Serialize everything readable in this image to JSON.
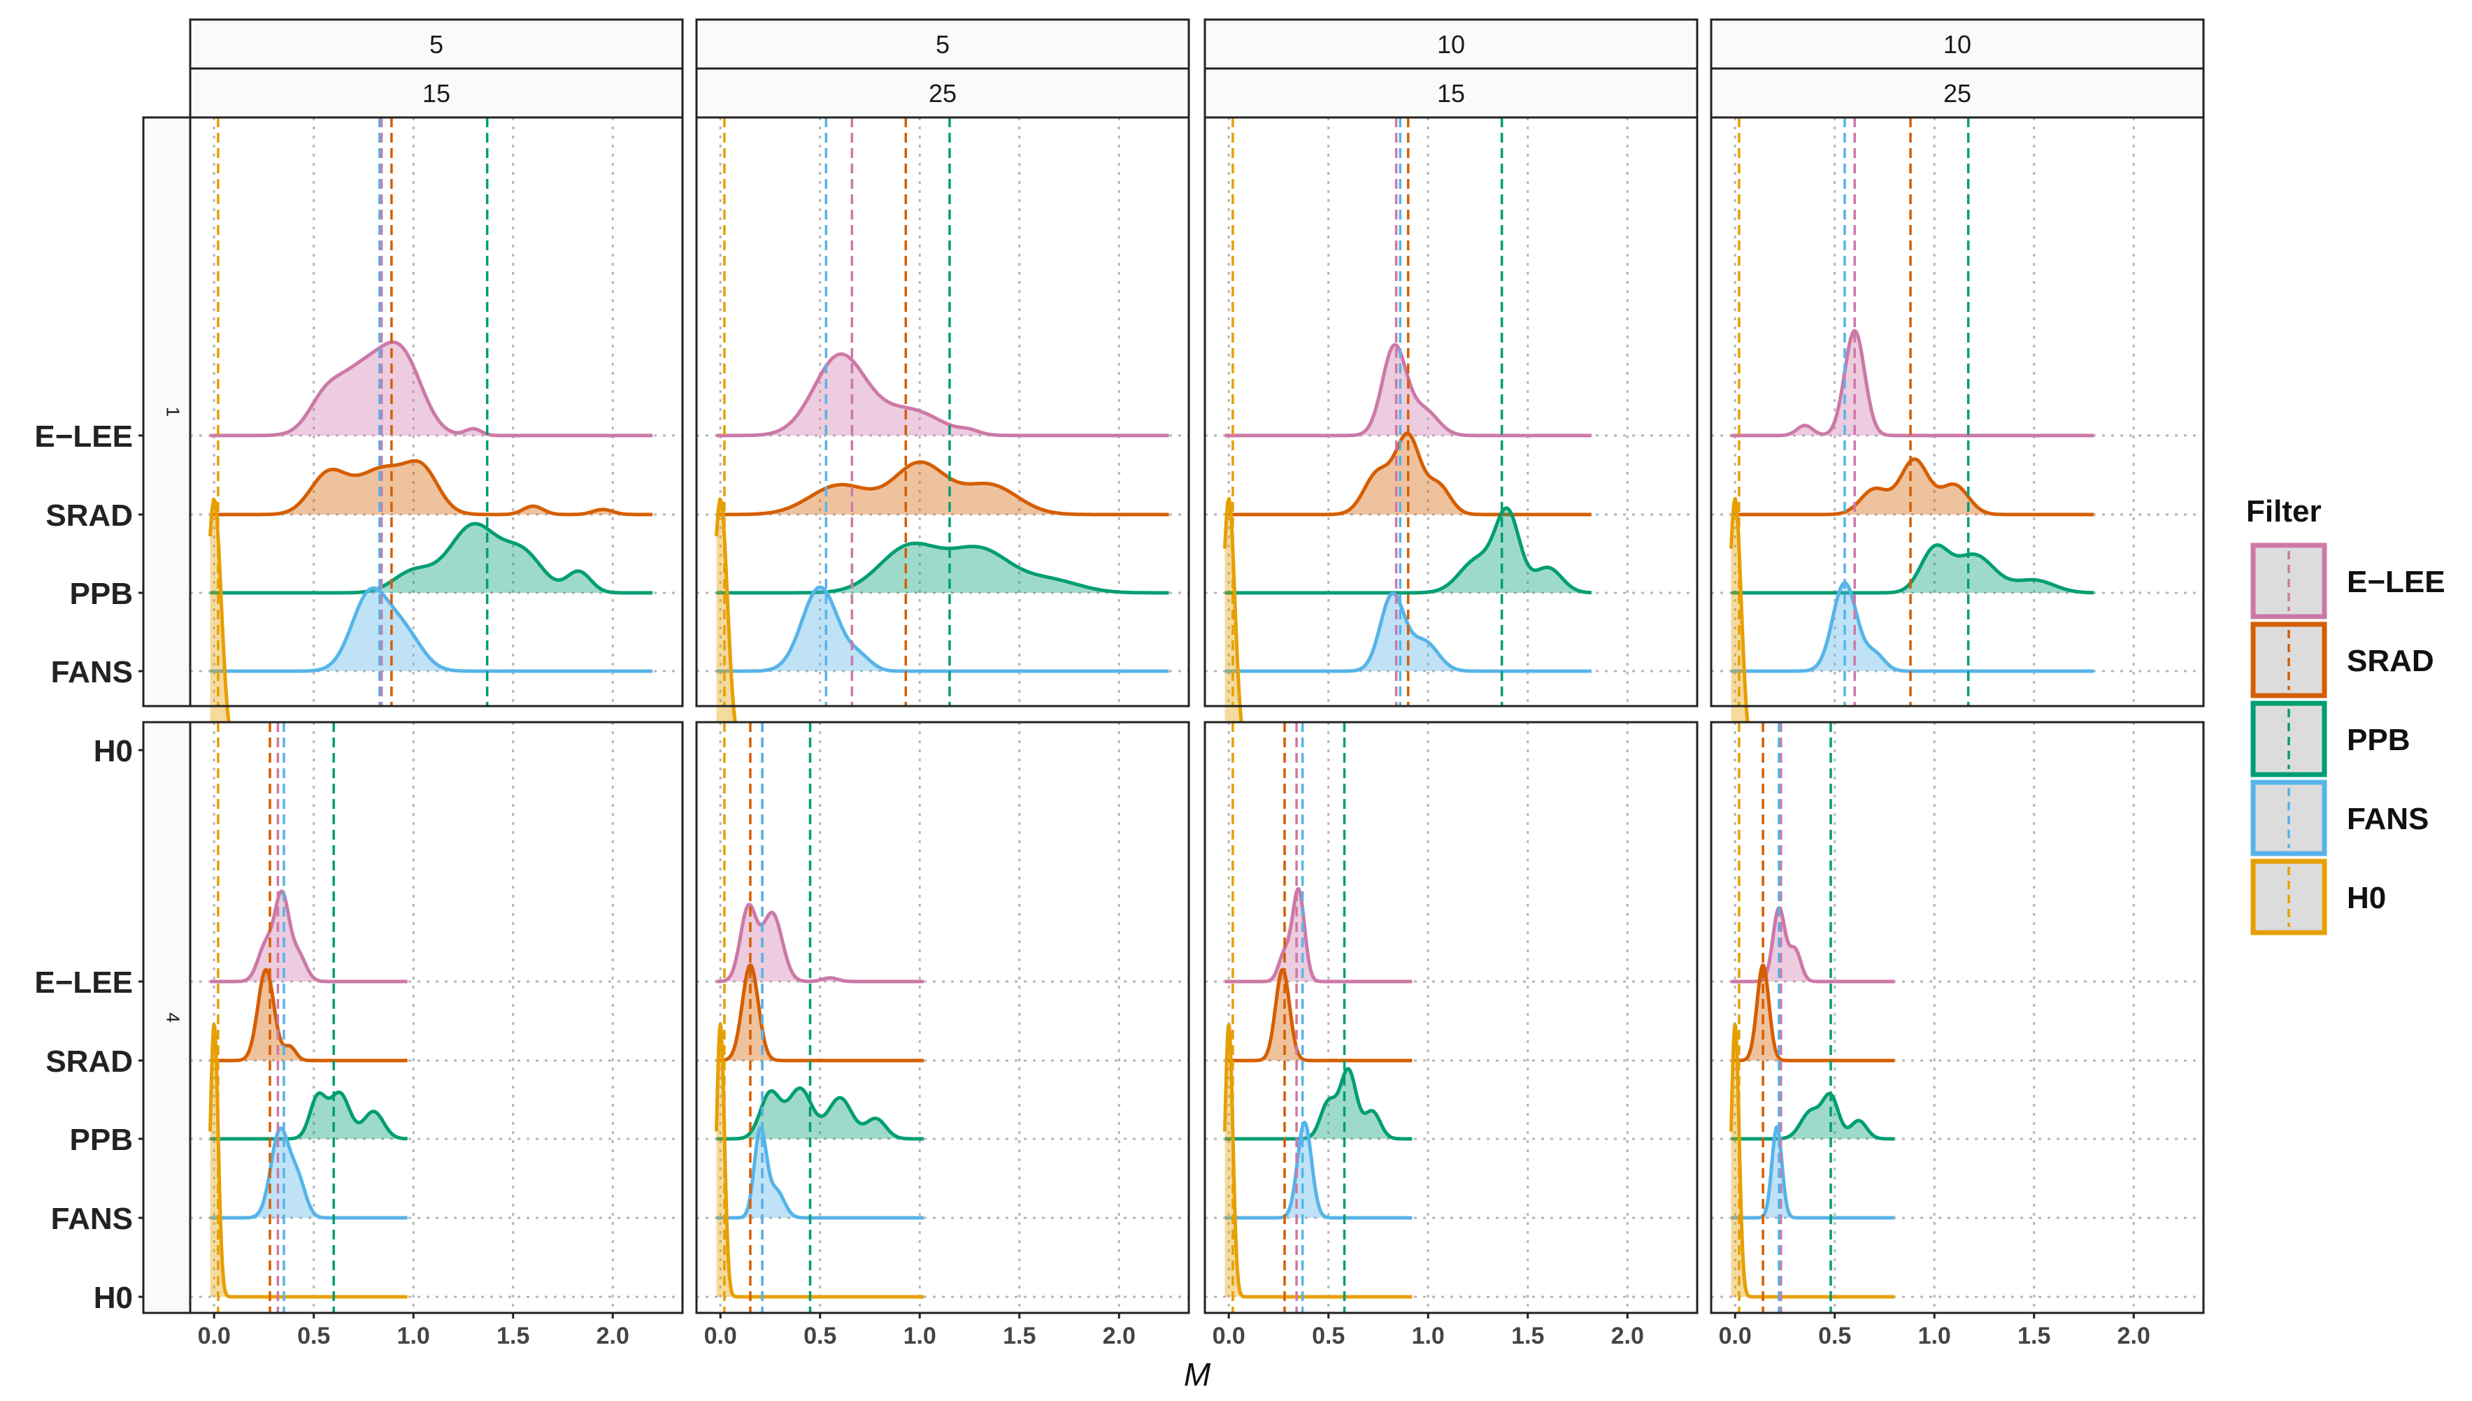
{
  "chart_data": {
    "type": "ridgeline-density",
    "xlabel": "M",
    "ylabel": "",
    "x_ticks": [
      0.0,
      0.5,
      1.0,
      1.5,
      2.0
    ],
    "x_tick_labels": [
      "0.0",
      "0.5",
      "1.0",
      "1.5",
      "2.0"
    ],
    "xlim": [
      -0.12,
      2.35
    ],
    "grid": "dotted",
    "legend": {
      "title": "Filter",
      "position": "right",
      "entries": [
        "E−LEE",
        "SRAD",
        "PPB",
        "FANS",
        "H0"
      ]
    },
    "categories": [
      "E−LEE",
      "SRAD",
      "PPB",
      "FANS",
      "H0"
    ],
    "colors": {
      "E−LEE": "#CC79A7",
      "SRAD": "#D55E00",
      "PPB": "#009E73",
      "FANS": "#56B4E9",
      "H0": "#E69F00"
    },
    "col_strips": [
      {
        "top": "5",
        "bottom": "15"
      },
      {
        "top": "5",
        "bottom": "25"
      },
      {
        "top": "10",
        "bottom": "15"
      },
      {
        "top": "10",
        "bottom": "25"
      }
    ],
    "row_strips": [
      "1",
      "4"
    ],
    "panels": [
      {
        "row": 0,
        "col": 0,
        "x_end": 2.2,
        "peak_height": 1.0,
        "means": {
          "E−LEE": 0.84,
          "SRAD": 0.89,
          "PPB": 1.37,
          "FANS": 0.83,
          "H0": 0.02
        },
        "series": {
          "E−LEE": [
            [
              0.55,
              0.28,
              0.08
            ],
            [
              0.75,
              0.8,
              0.14
            ],
            [
              0.95,
              0.75,
              0.1
            ],
            [
              1.3,
              0.08,
              0.04
            ]
          ],
          "SRAD": [
            [
              0.57,
              0.45,
              0.09
            ],
            [
              0.85,
              0.55,
              0.14
            ],
            [
              1.05,
              0.4,
              0.08
            ],
            [
              1.6,
              0.1,
              0.05
            ],
            [
              1.95,
              0.06,
              0.05
            ]
          ],
          "PPB": [
            [
              1.0,
              0.25,
              0.1
            ],
            [
              1.3,
              0.8,
              0.12
            ],
            [
              1.55,
              0.45,
              0.1
            ],
            [
              1.83,
              0.25,
              0.06
            ]
          ],
          "FANS": [
            [
              0.78,
              0.9,
              0.09
            ],
            [
              0.95,
              0.45,
              0.09
            ]
          ],
          "H0": [
            [
              0.0,
              3.0,
              0.035
            ]
          ]
        }
      },
      {
        "row": 0,
        "col": 1,
        "x_end": 2.25,
        "peak_height": 1.0,
        "means": {
          "E−LEE": 0.66,
          "SRAD": 0.93,
          "PPB": 1.15,
          "FANS": 0.53,
          "H0": 0.02
        },
        "series": {
          "E−LEE": [
            [
              0.6,
              0.95,
              0.13
            ],
            [
              0.95,
              0.3,
              0.15
            ],
            [
              1.25,
              0.04,
              0.05
            ]
          ],
          "SRAD": [
            [
              0.6,
              0.35,
              0.15
            ],
            [
              1.0,
              0.6,
              0.13
            ],
            [
              1.35,
              0.35,
              0.14
            ]
          ],
          "PPB": [
            [
              0.95,
              0.55,
              0.15
            ],
            [
              1.3,
              0.5,
              0.15
            ],
            [
              1.65,
              0.15,
              0.15
            ]
          ],
          "FANS": [
            [
              0.5,
              1.0,
              0.09
            ],
            [
              0.7,
              0.15,
              0.06
            ]
          ],
          "H0": [
            [
              0.0,
              3.0,
              0.035
            ]
          ]
        }
      },
      {
        "row": 0,
        "col": 2,
        "x_end": 1.82,
        "peak_height": 1.0,
        "means": {
          "E−LEE": 0.84,
          "SRAD": 0.9,
          "PPB": 1.37,
          "FANS": 0.86,
          "H0": 0.02
        },
        "series": {
          "E−LEE": [
            [
              0.83,
              1.05,
              0.06
            ],
            [
              0.98,
              0.3,
              0.07
            ]
          ],
          "SRAD": [
            [
              0.75,
              0.5,
              0.07
            ],
            [
              0.9,
              0.9,
              0.06
            ],
            [
              1.05,
              0.35,
              0.06
            ]
          ],
          "PPB": [
            [
              1.25,
              0.4,
              0.09
            ],
            [
              1.4,
              0.9,
              0.06
            ],
            [
              1.6,
              0.3,
              0.07
            ]
          ],
          "FANS": [
            [
              0.82,
              0.9,
              0.06
            ],
            [
              0.98,
              0.35,
              0.07
            ]
          ],
          "H0": [
            [
              0.0,
              3.0,
              0.03
            ]
          ]
        }
      },
      {
        "row": 0,
        "col": 3,
        "x_end": 1.8,
        "peak_height": 1.0,
        "means": {
          "E−LEE": 0.6,
          "SRAD": 0.88,
          "PPB": 1.17,
          "FANS": 0.55,
          "H0": 0.02
        },
        "series": {
          "E−LEE": [
            [
              0.6,
              1.25,
              0.05
            ],
            [
              0.35,
              0.12,
              0.04
            ]
          ],
          "SRAD": [
            [
              0.7,
              0.3,
              0.07
            ],
            [
              0.9,
              0.65,
              0.07
            ],
            [
              1.1,
              0.35,
              0.07
            ]
          ],
          "PPB": [
            [
              1.0,
              0.5,
              0.07
            ],
            [
              1.2,
              0.45,
              0.1
            ],
            [
              1.5,
              0.15,
              0.1
            ]
          ],
          "FANS": [
            [
              0.55,
              1.05,
              0.06
            ],
            [
              0.7,
              0.2,
              0.05
            ]
          ],
          "H0": [
            [
              0.0,
              3.0,
              0.03
            ]
          ]
        }
      },
      {
        "row": 1,
        "col": 0,
        "x_end": 0.97,
        "peak_height": 1.0,
        "means": {
          "E−LEE": 0.32,
          "SRAD": 0.28,
          "PPB": 0.6,
          "FANS": 0.35,
          "H0": 0.02
        },
        "series": {
          "E−LEE": [
            [
              0.26,
              0.4,
              0.04
            ],
            [
              0.34,
              0.9,
              0.035
            ],
            [
              0.42,
              0.3,
              0.04
            ]
          ],
          "SRAD": [
            [
              0.26,
              1.0,
              0.04
            ],
            [
              0.38,
              0.15,
              0.03
            ]
          ],
          "PPB": [
            [
              0.52,
              0.45,
              0.04
            ],
            [
              0.63,
              0.5,
              0.05
            ],
            [
              0.8,
              0.3,
              0.05
            ]
          ],
          "FANS": [
            [
              0.33,
              0.95,
              0.045
            ],
            [
              0.42,
              0.4,
              0.04
            ]
          ],
          "H0": [
            [
              0.0,
              3.0,
              0.02
            ]
          ]
        }
      },
      {
        "row": 1,
        "col": 1,
        "x_end": 1.02,
        "peak_height": 1.0,
        "means": {
          "E−LEE": 0.21,
          "SRAD": 0.15,
          "PPB": 0.45,
          "FANS": 0.21,
          "H0": 0.02
        },
        "series": {
          "E−LEE": [
            [
              0.14,
              0.8,
              0.04
            ],
            [
              0.26,
              0.75,
              0.05
            ],
            [
              0.55,
              0.04,
              0.04
            ]
          ],
          "SRAD": [
            [
              0.15,
              1.05,
              0.04
            ]
          ],
          "PPB": [
            [
              0.25,
              0.5,
              0.05
            ],
            [
              0.4,
              0.55,
              0.06
            ],
            [
              0.6,
              0.45,
              0.06
            ],
            [
              0.78,
              0.22,
              0.05
            ]
          ],
          "FANS": [
            [
              0.2,
              0.95,
              0.03
            ],
            [
              0.28,
              0.3,
              0.04
            ]
          ],
          "H0": [
            [
              0.0,
              3.0,
              0.02
            ]
          ]
        }
      },
      {
        "row": 1,
        "col": 2,
        "x_end": 0.92,
        "peak_height": 1.0,
        "means": {
          "E−LEE": 0.34,
          "SRAD": 0.28,
          "PPB": 0.58,
          "FANS": 0.37,
          "H0": 0.02
        },
        "series": {
          "E−LEE": [
            [
              0.35,
              1.0,
              0.03
            ],
            [
              0.28,
              0.3,
              0.03
            ]
          ],
          "SRAD": [
            [
              0.27,
              1.0,
              0.035
            ]
          ],
          "PPB": [
            [
              0.5,
              0.4,
              0.04
            ],
            [
              0.6,
              0.75,
              0.04
            ],
            [
              0.72,
              0.3,
              0.04
            ]
          ],
          "FANS": [
            [
              0.38,
              1.05,
              0.035
            ]
          ],
          "H0": [
            [
              0.0,
              3.0,
              0.02
            ]
          ]
        }
      },
      {
        "row": 1,
        "col": 3,
        "x_end": 0.8,
        "peak_height": 1.0,
        "means": {
          "E−LEE": 0.23,
          "SRAD": 0.14,
          "PPB": 0.48,
          "FANS": 0.22,
          "H0": 0.02
        },
        "series": {
          "E−LEE": [
            [
              0.22,
              0.8,
              0.03
            ],
            [
              0.3,
              0.35,
              0.03
            ]
          ],
          "SRAD": [
            [
              0.14,
              1.05,
              0.03
            ]
          ],
          "PPB": [
            [
              0.38,
              0.3,
              0.05
            ],
            [
              0.48,
              0.45,
              0.04
            ],
            [
              0.62,
              0.2,
              0.04
            ]
          ],
          "FANS": [
            [
              0.21,
              1.0,
              0.025
            ]
          ],
          "H0": [
            [
              0.0,
              3.0,
              0.02
            ]
          ]
        }
      }
    ]
  }
}
